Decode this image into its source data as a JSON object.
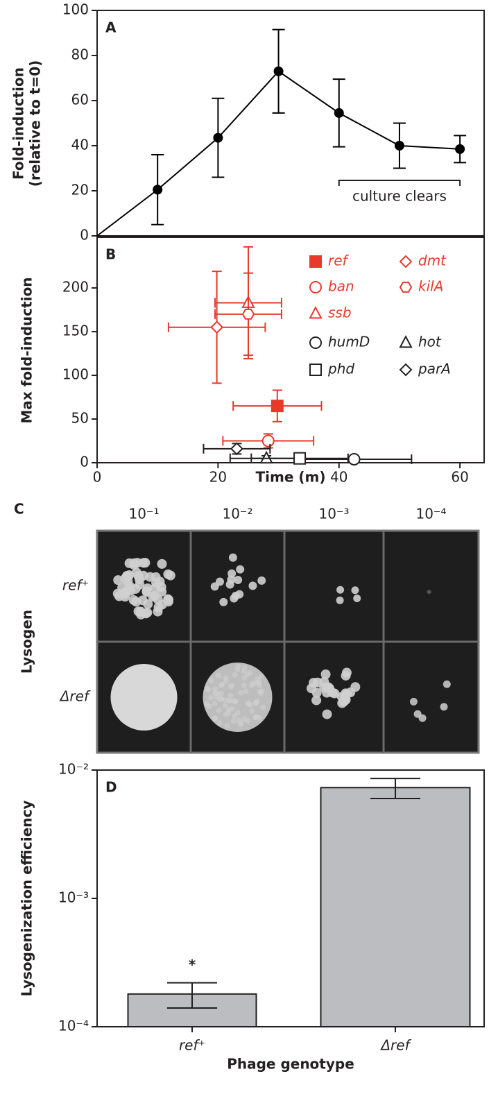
{
  "chart_data": [
    {
      "type": "line",
      "panel": "A",
      "ylabel": [
        "Fold-induction",
        "(relative to t=0)"
      ],
      "x": [
        0,
        10,
        20,
        30,
        40,
        50,
        60
      ],
      "values": [
        0,
        20.5,
        43.5,
        73,
        54.5,
        40,
        38.5
      ],
      "errors": [
        null,
        15.5,
        17.5,
        18.5,
        15,
        10,
        6
      ],
      "color": "#000000",
      "xlim": [
        0,
        64
      ],
      "ylim": [
        0,
        100
      ],
      "yticks": [
        0,
        20,
        40,
        60,
        80,
        100
      ],
      "annotation": "culture clears"
    },
    {
      "type": "scatter",
      "panel": "B",
      "xlabel": "Time (m)",
      "ylabel": "Max fold-induction",
      "xlim": [
        0,
        64
      ],
      "ylim": [
        0,
        258
      ],
      "xticks": [
        0,
        20,
        40,
        60
      ],
      "yticks": [
        0,
        50,
        100,
        150,
        200
      ],
      "series": [
        {
          "name": "ref",
          "color": "#e8392b",
          "marker": "square",
          "filled": true,
          "x": [
            29.8
          ],
          "values": [
            65
          ],
          "xerr": [
            7.3
          ],
          "yerr": [
            18
          ]
        },
        {
          "name": "ban",
          "color": "#e8392b",
          "marker": "circle",
          "filled": false,
          "x": [
            28.3
          ],
          "values": [
            25
          ],
          "xerr": [
            7.5
          ],
          "yerr": [
            8
          ]
        },
        {
          "name": "ssb",
          "color": "#e8392b",
          "marker": "triangle",
          "filled": false,
          "x": [
            25
          ],
          "values": [
            183
          ],
          "xerr": [
            5.5
          ],
          "yerr": [
            64
          ]
        },
        {
          "name": "dmt",
          "color": "#e8392b",
          "marker": "diamond",
          "filled": false,
          "x": [
            19.8
          ],
          "values": [
            155
          ],
          "xerr": [
            8
          ],
          "yerr": [
            64
          ]
        },
        {
          "name": "kilA",
          "color": "#e8392b",
          "marker": "hexagon",
          "filled": false,
          "x": [
            25
          ],
          "values": [
            170
          ],
          "xerr": [
            5.5
          ],
          "yerr": [
            47
          ]
        },
        {
          "name": "humD",
          "color": "#231f20",
          "marker": "circle",
          "filled": false,
          "x": [
            42.5
          ],
          "values": [
            4
          ],
          "xerr": [
            9.5
          ],
          "yerr": [
            3
          ]
        },
        {
          "name": "hot",
          "color": "#231f20",
          "marker": "triangle",
          "filled": false,
          "x": [
            28
          ],
          "values": [
            5
          ],
          "xerr": [
            6
          ],
          "yerr": [
            3
          ]
        },
        {
          "name": "phd",
          "color": "#231f20",
          "marker": "square",
          "filled": false,
          "x": [
            33.5
          ],
          "values": [
            5
          ],
          "xerr": [
            8
          ],
          "yerr": [
            3
          ]
        },
        {
          "name": "parA",
          "color": "#231f20",
          "marker": "diamond",
          "filled": false,
          "x": [
            23.1
          ],
          "values": [
            16
          ],
          "xerr": [
            5.5
          ],
          "yerr": [
            6
          ]
        }
      ]
    },
    {
      "type": "bar",
      "panel": "D",
      "log_scale": true,
      "xlabel": "Phage genotype",
      "ylabel": "Lysogenization efficiency",
      "categories": [
        "ref⁺",
        "Δref"
      ],
      "values": [
        0.00018,
        0.0073
      ],
      "errors": [
        4e-05,
        0.0013
      ],
      "color": "#bcbdc0",
      "ylim": [
        0.0001,
        0.01
      ],
      "yticks": [
        {
          "value": 0.0001,
          "label": "10⁻⁴"
        },
        {
          "value": 0.001,
          "label": "10⁻³"
        },
        {
          "value": 0.01,
          "label": "10⁻²"
        }
      ],
      "annotation": "*"
    }
  ],
  "panel_c": {
    "panel": "C",
    "label": "Lysogen",
    "columns": [
      "10⁻¹",
      "10⁻²",
      "10⁻³",
      "10⁻⁴"
    ],
    "rows": [
      "ref⁺",
      "Δref"
    ]
  }
}
